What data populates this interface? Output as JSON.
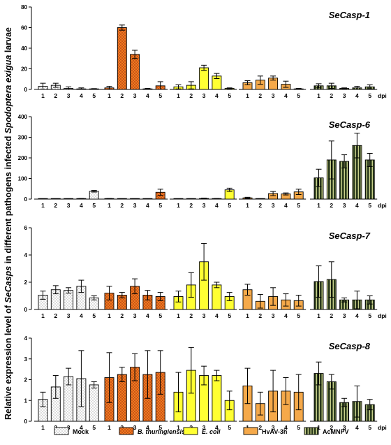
{
  "y_axis_title": {
    "prefix": "Relative expression level of ",
    "gene_italic": "SeCasps",
    "middle": " in different pathogens infected ",
    "species_italic": "Spodoptera exigua",
    "suffix": " larvae"
  },
  "colors": {
    "Mock": "#ffffff",
    "B. thuringiensis": "#f07a1e",
    "E. coli": "#ffff33",
    "HvAV-3h": "#f5a94a",
    "AcMNPV": "#2a3a1c"
  },
  "chart_data": [
    {
      "type": "bar",
      "title": "SeCasp-1",
      "ylim": [
        0,
        80
      ],
      "yticks": [
        "0",
        "20",
        "40",
        "60",
        "80"
      ],
      "categories": [
        "1",
        "2",
        "3",
        "4",
        "5"
      ],
      "xunit": "dpi",
      "series": [
        {
          "name": "Mock",
          "values": [
            3,
            4,
            1,
            0.5,
            0.3
          ],
          "errors": [
            3,
            2,
            1.5,
            1,
            0.5
          ]
        },
        {
          "name": "B. thuringiensis",
          "values": [
            1.5,
            60,
            34,
            0.5,
            3.5
          ],
          "errors": [
            1.5,
            2.5,
            4,
            0.5,
            4
          ]
        },
        {
          "name": "E. coli",
          "values": [
            2.5,
            4,
            21,
            13,
            1
          ],
          "errors": [
            2,
            3.5,
            2.5,
            2.5,
            0.5
          ]
        },
        {
          "name": "HvAV-3h",
          "values": [
            6.5,
            9,
            11,
            5,
            0.5
          ],
          "errors": [
            2,
            4,
            2,
            3,
            0.5
          ]
        },
        {
          "name": "AcMNPV",
          "values": [
            3.5,
            3.5,
            1,
            1.5,
            2.5
          ],
          "errors": [
            2,
            2.5,
            0.5,
            1.5,
            2
          ]
        }
      ]
    },
    {
      "type": "bar",
      "title": "SeCasp-6",
      "ylim": [
        0,
        400
      ],
      "yticks": [
        "0",
        "100",
        "200",
        "300",
        "400"
      ],
      "categories": [
        "1",
        "2",
        "3",
        "4",
        "5"
      ],
      "xunit": "dpi",
      "series": [
        {
          "name": "Mock",
          "values": [
            1,
            1,
            1,
            2,
            38
          ],
          "errors": [
            1,
            1,
            1,
            1,
            4
          ]
        },
        {
          "name": "B. thuringiensis",
          "values": [
            2,
            1,
            1,
            1,
            33
          ],
          "errors": [
            1,
            1,
            1,
            1,
            15
          ]
        },
        {
          "name": "E. coli",
          "values": [
            1,
            1,
            3,
            2,
            45
          ],
          "errors": [
            1,
            1,
            2,
            1,
            8
          ]
        },
        {
          "name": "HvAV-3h",
          "values": [
            6,
            1,
            27,
            25,
            35
          ],
          "errors": [
            3,
            1,
            10,
            5,
            13
          ]
        },
        {
          "name": "AcMNPV",
          "values": [
            103,
            190,
            183,
            260,
            190
          ],
          "errors": [
            42,
            92,
            32,
            60,
            32
          ]
        }
      ]
    },
    {
      "type": "bar",
      "title": "SeCasp-7",
      "ylim": [
        0,
        6
      ],
      "yticks": [
        "0",
        "2",
        "4",
        "6"
      ],
      "categories": [
        "1",
        "2",
        "3",
        "4",
        "5"
      ],
      "xunit": "dpi",
      "series": [
        {
          "name": "Mock",
          "values": [
            1.05,
            1.45,
            1.4,
            1.7,
            0.85
          ],
          "errors": [
            0.3,
            0.3,
            0.2,
            0.45,
            0.15
          ]
        },
        {
          "name": "B. thuringiensis",
          "values": [
            1.2,
            1.05,
            1.7,
            1.05,
            0.95
          ],
          "errors": [
            0.5,
            0.2,
            0.55,
            0.35,
            0.3
          ]
        },
        {
          "name": "E. coli",
          "values": [
            0.95,
            1.8,
            3.5,
            1.8,
            0.95
          ],
          "errors": [
            0.4,
            0.9,
            1.35,
            0.2,
            0.3
          ]
        },
        {
          "name": "HvAV-3h",
          "values": [
            1.45,
            0.6,
            0.95,
            0.7,
            0.65
          ],
          "errors": [
            0.4,
            0.5,
            0.65,
            0.45,
            0.4
          ]
        },
        {
          "name": "AcMNPV",
          "values": [
            2.05,
            2.2,
            0.7,
            0.7,
            0.7
          ],
          "errors": [
            1.15,
            1.3,
            0.15,
            0.65,
            0.3
          ]
        }
      ]
    },
    {
      "type": "bar",
      "title": "SeCasp-8",
      "ylim": [
        0,
        4
      ],
      "yticks": [
        "0",
        "1",
        "2",
        "3",
        "4"
      ],
      "categories": [
        "1",
        "2",
        "3",
        "4",
        "5"
      ],
      "xunit": "dpi",
      "series": [
        {
          "name": "Mock",
          "values": [
            1.05,
            1.65,
            2.15,
            2.05,
            1.75
          ],
          "errors": [
            0.35,
            0.55,
            0.4,
            1.35,
            0.15
          ]
        },
        {
          "name": "B. thuringiensis",
          "values": [
            2.1,
            2.25,
            2.6,
            2.25,
            2.35
          ],
          "errors": [
            1.2,
            0.35,
            0.65,
            1.15,
            1.05
          ]
        },
        {
          "name": "E. coli",
          "values": [
            1.4,
            2.45,
            2.2,
            2.2,
            1.0
          ],
          "errors": [
            0.95,
            1.1,
            0.45,
            0.25,
            0.45
          ]
        },
        {
          "name": "HvAV-3h",
          "values": [
            1.7,
            0.85,
            1.45,
            1.45,
            1.4
          ],
          "errors": [
            0.85,
            0.55,
            1.0,
            0.65,
            0.85
          ]
        },
        {
          "name": "AcMNPV",
          "values": [
            2.3,
            1.9,
            0.9,
            0.95,
            0.8
          ],
          "errors": [
            0.55,
            0.35,
            0.2,
            0.75,
            0.25
          ]
        }
      ]
    }
  ],
  "legend": [
    {
      "label": "Mock",
      "italic": false
    },
    {
      "label": "B. thuringiensis",
      "italic": true
    },
    {
      "label": "E. coli",
      "italic": true
    },
    {
      "label": "HvAV-3h",
      "italic": false
    },
    {
      "label": "AcMNPV",
      "italic": false
    }
  ]
}
